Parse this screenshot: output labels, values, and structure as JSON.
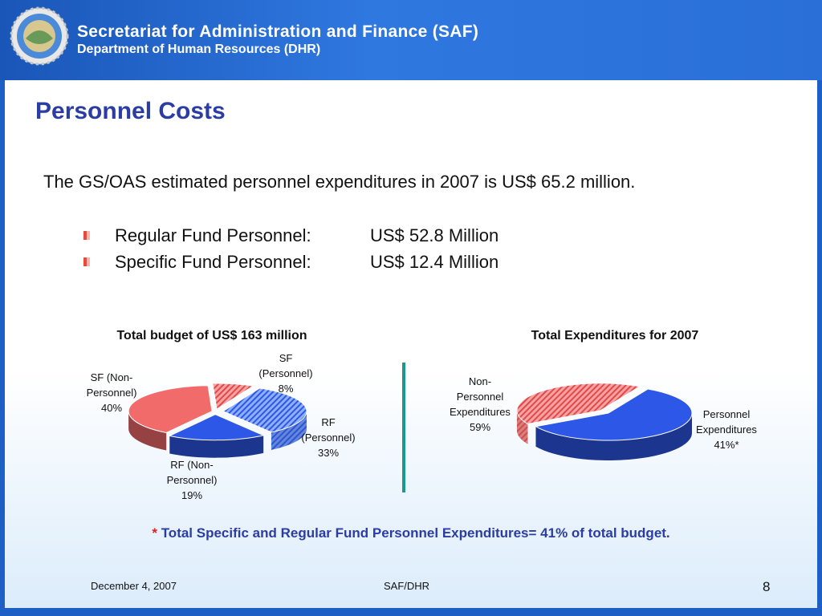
{
  "header": {
    "line1": "Secretariat for Administration and Finance (SAF)",
    "line2": "Department of Human Resources (DHR)"
  },
  "slide": {
    "title": "Personnel Costs",
    "intro": "The GS/OAS estimated personnel expenditures in 2007 is US$ 65.2 million.",
    "bullets": [
      {
        "label": "Regular Fund Personnel:",
        "value": "US$ 52.8 Million"
      },
      {
        "label": "Specific Fund Personnel:",
        "value": "US$ 12.4 Million"
      }
    ],
    "footnote_mark": "*",
    "footnote": "Total Specific and Regular Fund Personnel Expenditures= 41% of total budget."
  },
  "footer": {
    "date": "December 4, 2007",
    "center": "SAF/DHR",
    "page": "8"
  },
  "chart_data": [
    {
      "type": "pie",
      "title": "Total budget of US$ 163 million",
      "slices": [
        {
          "label": "SF (Personnel)",
          "value": 8,
          "value_label": "8%",
          "color": "#f26b6b",
          "hatched": true
        },
        {
          "label": "RF (Personnel)",
          "value": 33,
          "value_label": "33%",
          "color": "#3e6ff0",
          "hatched": true
        },
        {
          "label": "RF (Non-Personnel)",
          "value": 19,
          "value_label": "19%",
          "color": "#2d57e6",
          "hatched": false
        },
        {
          "label": "SF (Non-Personnel)",
          "value": 40,
          "value_label": "40%",
          "color": "#f26b6b",
          "hatched": false
        }
      ]
    },
    {
      "type": "pie",
      "title": "Total Expenditures for 2007",
      "slices": [
        {
          "label": "Non-Personnel Expenditures",
          "value": 59,
          "value_label": "59%",
          "color": "#2d57e6",
          "hatched": false
        },
        {
          "label": "Personnel Expenditures",
          "value": 41,
          "value_label": "41%*",
          "color": "#f26b6b",
          "hatched": true
        }
      ]
    }
  ],
  "colors": {
    "header_blue": "#2a6fd8",
    "title_blue": "#2b3da4",
    "divider_teal": "#1a9a8e"
  },
  "icons": {
    "logo": "oas-seal-icon",
    "bullet": "square-bullet-icon"
  }
}
